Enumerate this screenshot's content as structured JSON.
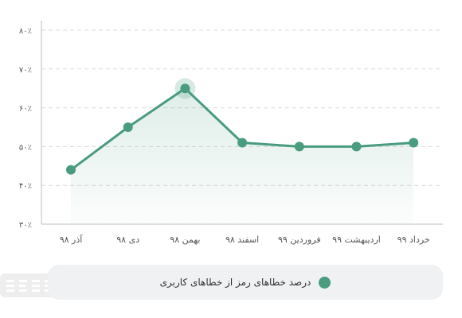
{
  "chart_data": {
    "type": "line",
    "categories": [
      "آذر ۹۸",
      "دی ۹۸",
      "بهمن ۹۸",
      "اسفند ۹۸",
      "فروردین ۹۹",
      "اردیبهشت ۹۹",
      "خرداد ۹۹"
    ],
    "series": [
      {
        "name": "درصد خطاهای رمز از خطاهای کاربری",
        "values": [
          44,
          55,
          65,
          51,
          50,
          50,
          51
        ],
        "color": "#4a9c7f"
      }
    ],
    "ylim": [
      30,
      80
    ],
    "yticks": [
      30,
      40,
      50,
      60,
      70,
      80
    ],
    "ytick_labels": [
      "۳۰٪",
      "۴۰٪",
      "۵۰٪",
      "۶۰٪",
      "۷۰٪",
      "۸۰٪"
    ],
    "highlight_index": 2,
    "grid": true,
    "area_fill": true,
    "legend_position": "bottom",
    "title": "",
    "xlabel": "",
    "ylabel": ""
  },
  "colors": {
    "line": "#4a9c7f",
    "grid": "#d9d9d9",
    "axis_text": "#555555",
    "legend_bg": "#f0f1f3",
    "highlight_halo": "#4a9c7f"
  }
}
